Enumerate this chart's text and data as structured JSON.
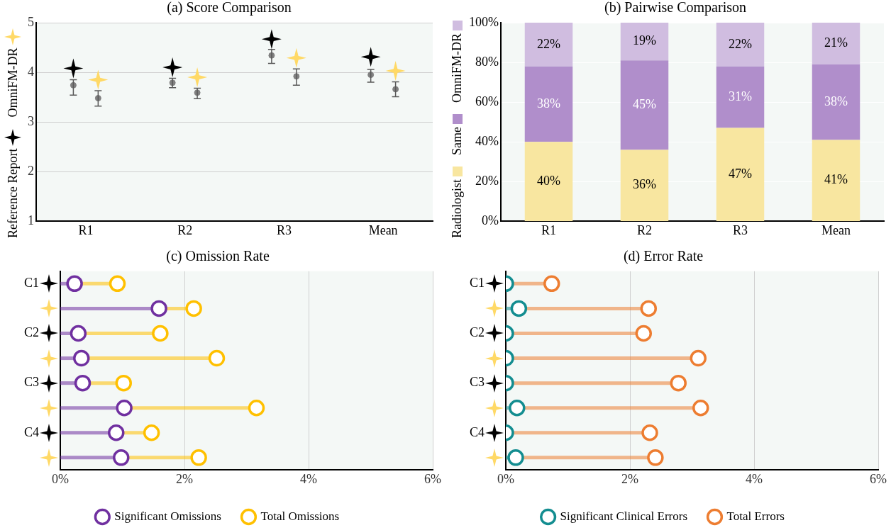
{
  "chart_data": [
    {
      "type": "scatter",
      "title": "(a) Score Comparison",
      "categories": [
        "R1",
        "R2",
        "R3",
        "Mean"
      ],
      "series": [
        {
          "name": "Reference Report",
          "color": "#000000",
          "marker": "star",
          "values": [
            4.08,
            4.1,
            4.67,
            4.31
          ]
        },
        {
          "color": "#808080",
          "marker": "circle",
          "values": [
            3.74,
            3.79,
            4.34,
            3.95
          ],
          "errors": [
            [
              3.54,
              3.85
            ],
            [
              3.69,
              3.88
            ],
            [
              4.18,
              4.46
            ],
            [
              3.8,
              4.06
            ]
          ]
        },
        {
          "name": "OmniFM-DR",
          "color": "#ffd966",
          "marker": "star",
          "values": [
            3.85,
            3.9,
            4.29,
            4.03
          ]
        },
        {
          "color": "#808080",
          "marker": "circle",
          "values": [
            3.48,
            3.59,
            3.92,
            3.66
          ],
          "errors": [
            [
              3.32,
              3.63
            ],
            [
              3.47,
              3.68
            ],
            [
              3.74,
              4.07
            ],
            [
              3.51,
              3.81
            ]
          ]
        }
      ],
      "ylim": [
        1,
        5
      ],
      "yticks": [
        1,
        2,
        3,
        4,
        5
      ],
      "grid": "y",
      "legend": "left"
    },
    {
      "type": "bar",
      "stacked": true,
      "title": "(b) Pairwise Comparison",
      "categories": [
        "R1",
        "R2",
        "R3",
        "Mean"
      ],
      "series": [
        {
          "name": "Radiologist",
          "color": "#f8e6a0",
          "values": [
            40,
            36,
            47,
            41
          ],
          "value_labels": [
            "40%",
            "36%",
            "47%",
            "41%"
          ]
        },
        {
          "name": "Same",
          "color": "#b08ecb",
          "values": [
            38,
            45,
            31,
            38
          ],
          "value_labels": [
            "38%",
            "45%",
            "31%",
            "38%"
          ]
        },
        {
          "name": "OmniFM-DR",
          "color": "#d0bde0",
          "values": [
            22,
            19,
            22,
            21
          ],
          "value_labels": [
            "22%",
            "19%",
            "22%",
            "21%"
          ]
        }
      ],
      "ylim": [
        0,
        100
      ],
      "yticks": [
        {
          "value": 0,
          "label": "0%"
        },
        {
          "value": 20,
          "label": "20%"
        },
        {
          "value": 40,
          "label": "40%"
        },
        {
          "value": 60,
          "label": "60%"
        },
        {
          "value": 80,
          "label": "80%"
        },
        {
          "value": 100,
          "label": "100%"
        }
      ],
      "grid": "y",
      "legend": "left"
    },
    {
      "type": "lollipop",
      "orientation": "horizontal",
      "title": "(c) Omission Rate",
      "categories": [
        "C1",
        null,
        "C2",
        null,
        "C3",
        null,
        "C4",
        null
      ],
      "series": [
        {
          "name": "Significant Omissions",
          "color": "#7030a0",
          "values": [
            0.23,
            1.59,
            0.29,
            0.34,
            0.36,
            1.03,
            0.9,
            0.98
          ]
        },
        {
          "name": "Total Omissions",
          "color": "#ffc000",
          "values": [
            0.92,
            2.15,
            1.61,
            2.52,
            1.02,
            3.16,
            1.47,
            2.23
          ]
        }
      ],
      "xlim": [
        0,
        6
      ],
      "xticks": [
        {
          "value": 0,
          "label": "0%"
        },
        {
          "value": 2,
          "label": "2%"
        },
        {
          "value": 4,
          "label": "4%"
        },
        {
          "value": 6,
          "label": "6%"
        }
      ],
      "grid": "x",
      "legend": "bottom",
      "marker": "circle"
    },
    {
      "type": "lollipop",
      "orientation": "horizontal",
      "title": "(d) Error Rate",
      "categories": [
        "C1",
        null,
        "C2",
        null,
        "C3",
        null,
        "C4",
        null
      ],
      "series": [
        {
          "name": "Significant Clinical Errors",
          "color": "#138d90",
          "values": [
            0,
            0.21,
            0,
            0,
            0,
            0.18,
            0,
            0.16
          ]
        },
        {
          "name": "Total Errors",
          "color": "#ed7d31",
          "values": [
            0.74,
            2.3,
            2.22,
            3.1,
            2.78,
            3.14,
            2.32,
            2.41
          ]
        }
      ],
      "xlim": [
        0,
        6
      ],
      "xticks": [
        {
          "value": 0,
          "label": "0%"
        },
        {
          "value": 2,
          "label": "2%"
        },
        {
          "value": 4,
          "label": "4%"
        },
        {
          "value": 6,
          "label": "6%"
        }
      ],
      "grid": "x",
      "legend": "bottom",
      "marker": "circle"
    }
  ]
}
